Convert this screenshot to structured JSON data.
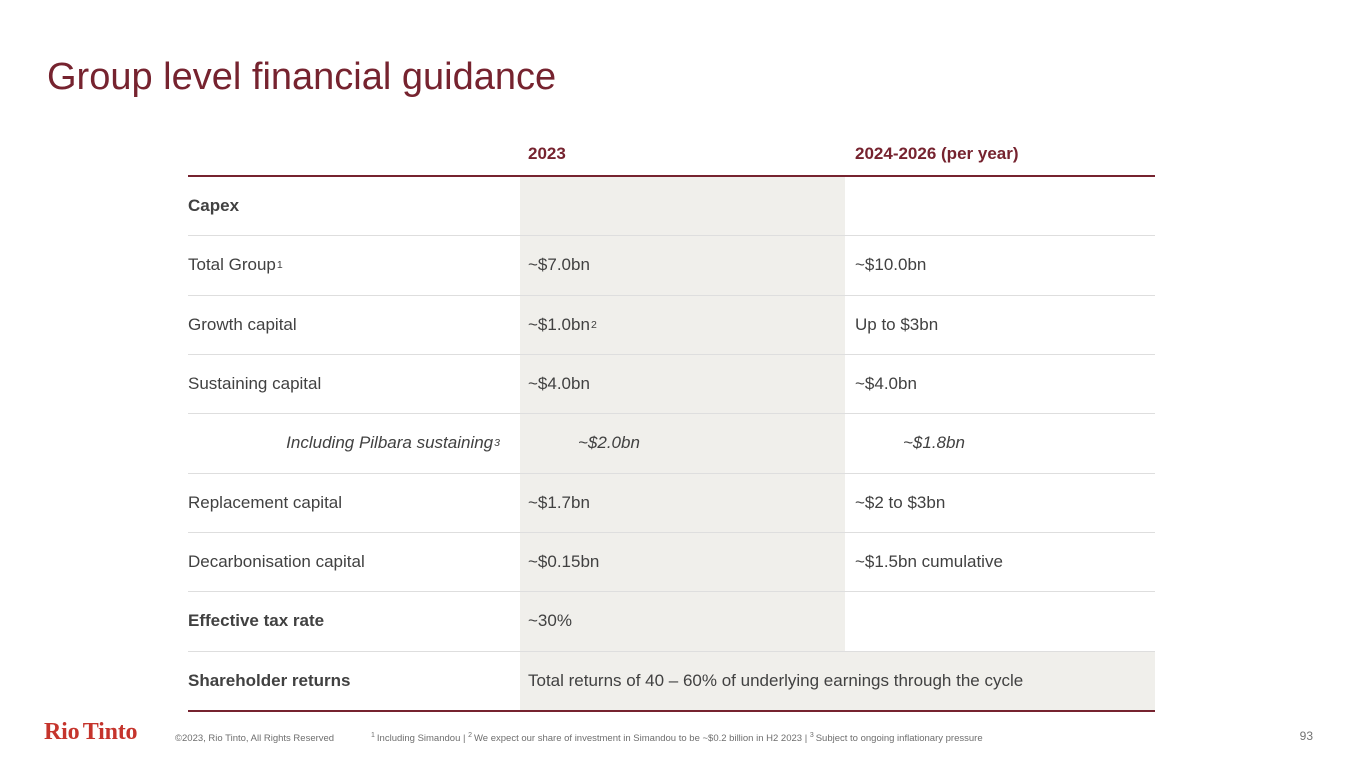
{
  "slide": {
    "title": "Group level financial guidance",
    "page_number": "93"
  },
  "table": {
    "header": {
      "col_2023": "2023",
      "col_2024_2026": "2024-2026 (per year)"
    },
    "rows": [
      {
        "label": "Capex",
        "v1": "",
        "v2": ""
      },
      {
        "label": "Total Group",
        "label_sup": "1",
        "v1": "~$7.0bn",
        "v2": "~$10.0bn"
      },
      {
        "label": "Growth capital",
        "v1": "~$1.0bn",
        "v1_sup": "2",
        "v2": "Up to $3bn"
      },
      {
        "label": "Sustaining capital",
        "v1": "~$4.0bn",
        "v2": "~$4.0bn"
      },
      {
        "label": "Including Pilbara sustaining",
        "label_sup": "3",
        "v1": "~$2.0bn",
        "v2": "~$1.8bn"
      },
      {
        "label": "Replacement capital",
        "v1": "~$1.7bn",
        "v2": "~$2 to $3bn"
      },
      {
        "label": "Decarbonisation capital",
        "v1": "~$0.15bn",
        "v2": "~$1.5bn cumulative"
      },
      {
        "label": "Effective tax rate",
        "v1": "~30%",
        "v2": ""
      },
      {
        "label": "Shareholder returns",
        "v_span": "Total returns of 40 – 60% of underlying earnings through the cycle"
      }
    ]
  },
  "footer": {
    "logo_text": "Rio Tinto",
    "copyright": "©2023, Rio Tinto, All Rights Reserved",
    "footnote_separator": " | ",
    "footnotes": [
      {
        "sup": "1",
        "text": "Including Simandou"
      },
      {
        "sup": "2",
        "text": "We expect our share of investment in Simandou to be ~$0.2 billion in H2 2023"
      },
      {
        "sup": "3",
        "text": "Subject to ongoing inflationary pressure"
      }
    ]
  },
  "colors": {
    "brand_maroon": "#76232F",
    "logo_red": "#c5342c",
    "column_shade": "#f0efeb",
    "body_text": "#414141",
    "muted_text": "#6e6e6e"
  }
}
